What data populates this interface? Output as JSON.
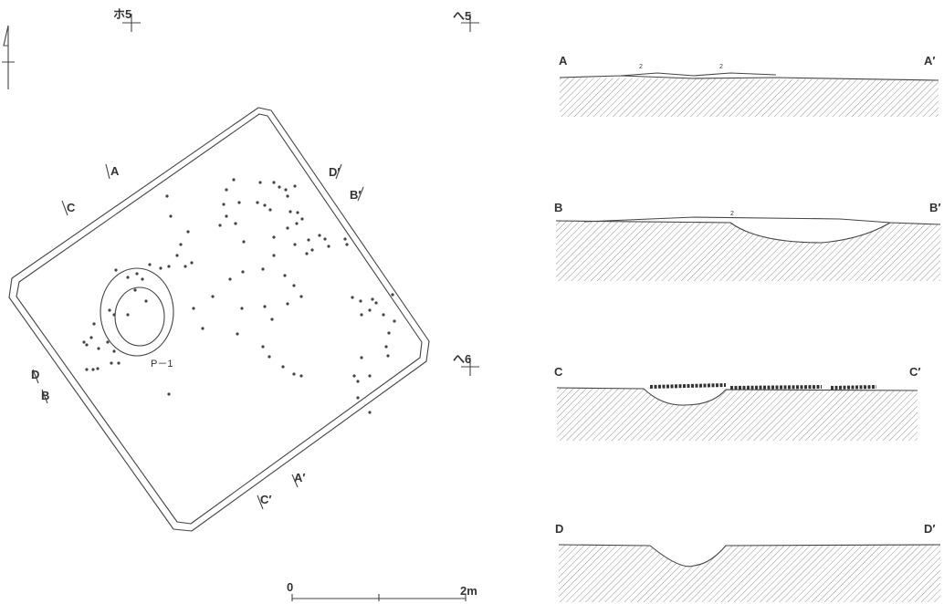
{
  "plan": {
    "grid_markers": [
      "ホ5",
      "へ5",
      "へ6"
    ],
    "section_marks": [
      "A",
      "A′",
      "B",
      "B′",
      "C",
      "C′",
      "D",
      "D′"
    ],
    "pit_label": "P－1"
  },
  "scale": {
    "start": "0",
    "end": "2m"
  },
  "sections": [
    {
      "start": "A",
      "end": "A′",
      "notes": [
        "2",
        "2"
      ]
    },
    {
      "start": "B",
      "end": "B′",
      "notes": [
        "2"
      ]
    },
    {
      "start": "C",
      "end": "C′"
    },
    {
      "start": "D",
      "end": "D′"
    }
  ]
}
